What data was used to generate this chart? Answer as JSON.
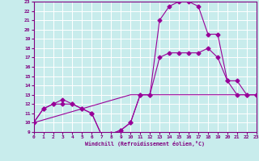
{
  "xlabel": "Windchill (Refroidissement éolien,°C)",
  "bg_color": "#c8ecec",
  "line_color": "#990099",
  "grid_color": "#ffffff",
  "xmin": 0,
  "xmax": 23,
  "ymin": 9,
  "ymax": 23,
  "line1_x": [
    0,
    1,
    2,
    3,
    4,
    5,
    6,
    7,
    8,
    9,
    10,
    11,
    12,
    13,
    14,
    15,
    16,
    17,
    18,
    19,
    20,
    21,
    22,
    23
  ],
  "line1_y": [
    10,
    11.5,
    12,
    12,
    12,
    11.5,
    11,
    8.7,
    8.8,
    9.2,
    10,
    13,
    13,
    17,
    17.5,
    17.5,
    17.5,
    17.5,
    18,
    17,
    14.5,
    14.5,
    13,
    13
  ],
  "line2_x": [
    0,
    1,
    2,
    3,
    4,
    5,
    6,
    7,
    8,
    9,
    10,
    11,
    12,
    13,
    14,
    15,
    16,
    17,
    18,
    19,
    20,
    21,
    22,
    23
  ],
  "line2_y": [
    10,
    11.5,
    12,
    12.5,
    12,
    11.5,
    11,
    8.7,
    8.8,
    9.2,
    10.0,
    13,
    13,
    21,
    22.5,
    23,
    23,
    22.5,
    19.5,
    19.5,
    14.5,
    13,
    13,
    13
  ],
  "line3_x": [
    0,
    10,
    11,
    12,
    13,
    14,
    15,
    16,
    17,
    18,
    19,
    20,
    21,
    22,
    23
  ],
  "line3_y": [
    10,
    13,
    13,
    13,
    13,
    13,
    13,
    13,
    13,
    13,
    13,
    13,
    13,
    13,
    13
  ],
  "marker_size": 2.5
}
